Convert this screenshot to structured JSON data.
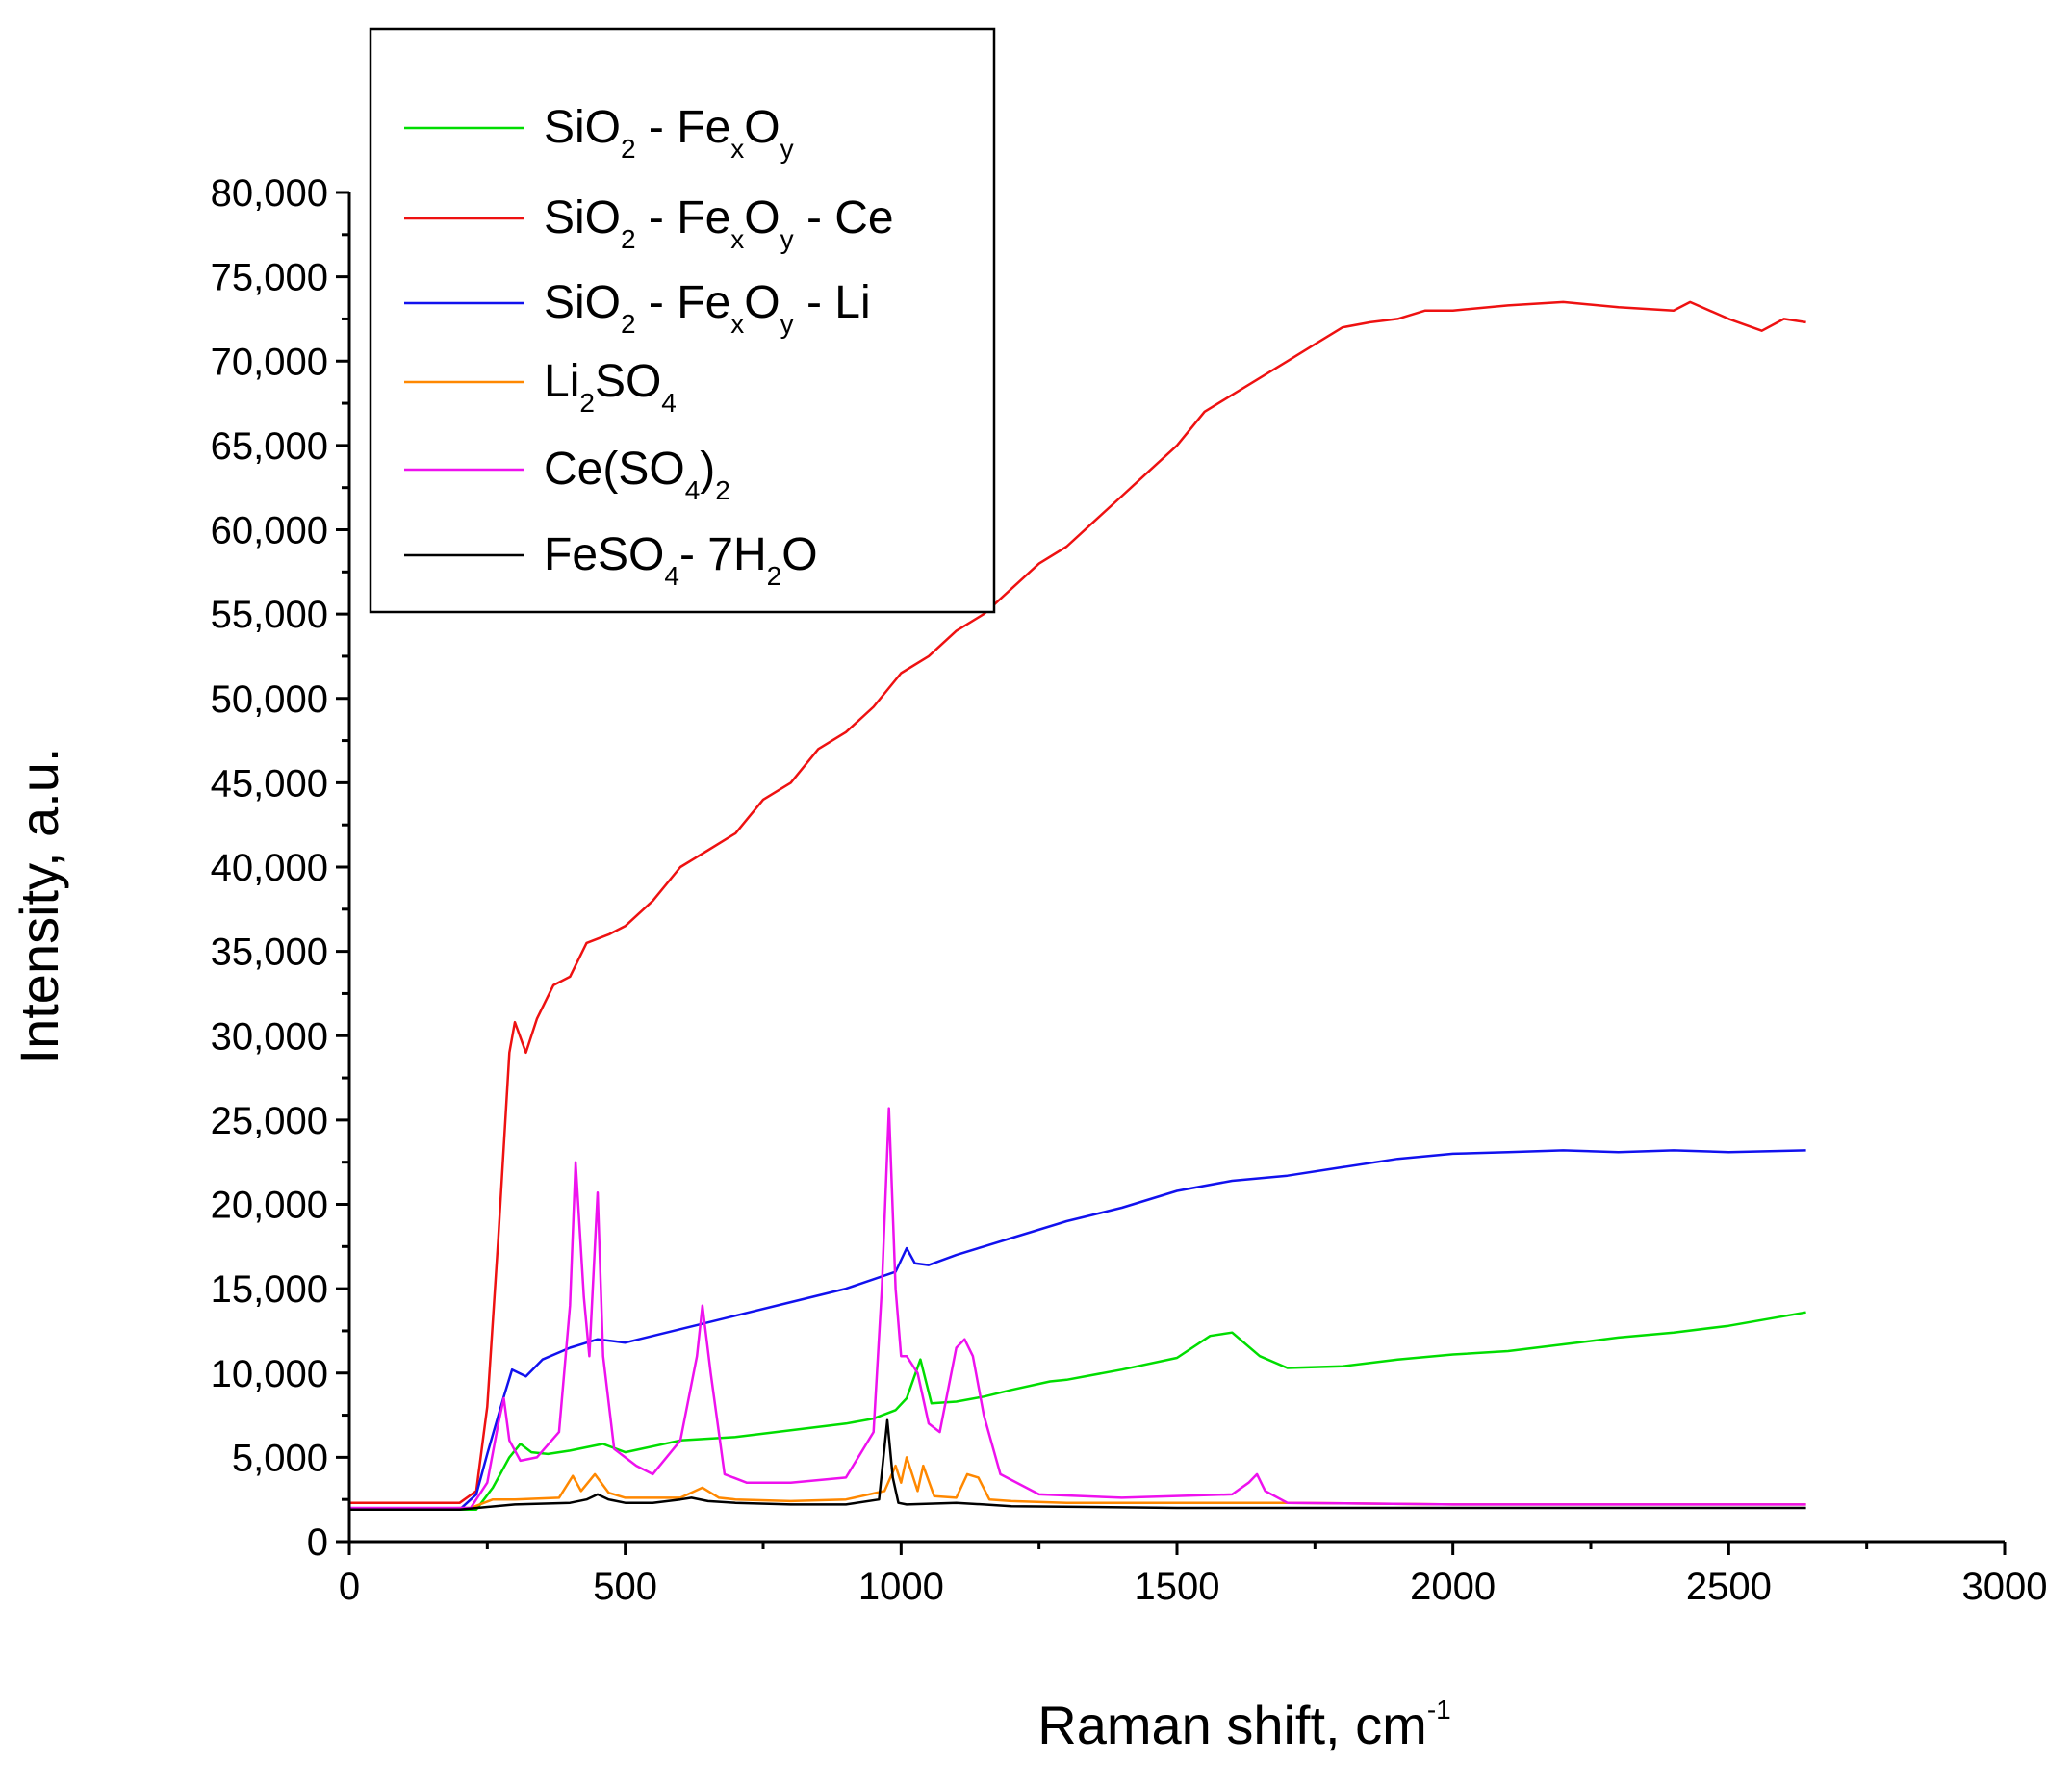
{
  "chart_data": {
    "type": "line",
    "title": "",
    "xlabel": "Raman shift, cm",
    "xlabel_sup": "-1",
    "ylabel": "Intensity, a.u.",
    "xlim": [
      0,
      3000
    ],
    "ylim": [
      0,
      80000
    ],
    "xticks": [
      0,
      500,
      1000,
      1500,
      2000,
      2500,
      3000
    ],
    "xtick_labels": [
      "0",
      "500",
      "1000",
      "1500",
      "2000",
      "2500",
      "3000"
    ],
    "yticks": [
      0,
      5000,
      10000,
      15000,
      20000,
      25000,
      30000,
      35000,
      40000,
      45000,
      50000,
      55000,
      60000,
      65000,
      70000,
      75000,
      80000
    ],
    "ytick_labels": [
      "0",
      "5,000",
      "10,000",
      "15,000",
      "20,000",
      "25,000",
      "30,000",
      "35,000",
      "40,000",
      "45,000",
      "50,000",
      "55,000",
      "60,000",
      "65,000",
      "70,000",
      "75,000",
      "80,000"
    ],
    "grid": false,
    "legend_position": "top-left",
    "series": [
      {
        "legend": [
          {
            "t": "SiO"
          },
          {
            "t": "2",
            "s": "sub"
          },
          {
            "t": " - Fe"
          },
          {
            "t": "x",
            "s": "sub"
          },
          {
            "t": "O"
          },
          {
            "t": "y",
            "s": "sub"
          }
        ],
        "color": "#00dd00",
        "x": [
          0,
          230,
          260,
          290,
          310,
          330,
          360,
          400,
          460,
          500,
          600,
          700,
          800,
          900,
          950,
          990,
          1010,
          1035,
          1055,
          1100,
          1150,
          1200,
          1270,
          1300,
          1400,
          1500,
          1560,
          1600,
          1650,
          1700,
          1800,
          1900,
          2000,
          2100,
          2200,
          2300,
          2400,
          2500,
          2640
        ],
        "y": [
          1900,
          1900,
          3200,
          5000,
          5800,
          5300,
          5200,
          5400,
          5800,
          5300,
          6000,
          6200,
          6600,
          7000,
          7300,
          7800,
          8500,
          10800,
          8200,
          8300,
          8600,
          9000,
          9500,
          9600,
          10200,
          10900,
          12200,
          12400,
          11000,
          10300,
          10400,
          10800,
          11100,
          11300,
          11700,
          12100,
          12400,
          12800,
          13600
        ]
      },
      {
        "legend": [
          {
            "t": "SiO"
          },
          {
            "t": "2",
            "s": "sub"
          },
          {
            "t": " - Fe"
          },
          {
            "t": "x",
            "s": "sub"
          },
          {
            "t": "O"
          },
          {
            "t": "y",
            "s": "sub"
          },
          {
            "t": " - Ce"
          }
        ],
        "color": "#ee1111",
        "x": [
          0,
          200,
          230,
          250,
          270,
          290,
          300,
          320,
          340,
          370,
          400,
          430,
          470,
          500,
          550,
          600,
          650,
          700,
          750,
          800,
          850,
          900,
          950,
          1000,
          1050,
          1100,
          1150,
          1200,
          1250,
          1300,
          1350,
          1400,
          1450,
          1500,
          1550,
          1600,
          1650,
          1700,
          1750,
          1800,
          1850,
          1900,
          1950,
          2000,
          2100,
          2200,
          2300,
          2400,
          2430,
          2500,
          2560,
          2600,
          2640
        ],
        "y": [
          2300,
          2300,
          3000,
          8000,
          18000,
          29000,
          30800,
          29000,
          31000,
          33000,
          33500,
          35500,
          36000,
          36500,
          38000,
          40000,
          41000,
          42000,
          44000,
          45000,
          47000,
          48000,
          49500,
          51500,
          52500,
          54000,
          55000,
          56500,
          58000,
          59000,
          60500,
          62000,
          63500,
          65000,
          67000,
          68000,
          69000,
          70000,
          71000,
          72000,
          72300,
          72500,
          73000,
          73000,
          73300,
          73500,
          73200,
          73000,
          73500,
          72500,
          71800,
          72500,
          72300
        ]
      },
      {
        "legend": [
          {
            "t": "SiO"
          },
          {
            "t": "2",
            "s": "sub"
          },
          {
            "t": " - Fe"
          },
          {
            "t": "x",
            "s": "sub"
          },
          {
            "t": "O"
          },
          {
            "t": "y",
            "s": "sub"
          },
          {
            "t": " - Li"
          }
        ],
        "color": "#1111ee",
        "x": [
          0,
          200,
          230,
          250,
          280,
          295,
          320,
          350,
          400,
          450,
          500,
          600,
          700,
          800,
          900,
          990,
          1010,
          1025,
          1050,
          1100,
          1150,
          1200,
          1300,
          1400,
          1500,
          1600,
          1700,
          1800,
          1900,
          2000,
          2100,
          2200,
          2300,
          2400,
          2500,
          2640
        ],
        "y": [
          1900,
          1900,
          2800,
          5200,
          8600,
          10200,
          9800,
          10800,
          11500,
          12000,
          11800,
          12600,
          13400,
          14200,
          15000,
          16000,
          17400,
          16500,
          16400,
          17000,
          17500,
          18000,
          19000,
          19800,
          20800,
          21400,
          21700,
          22200,
          22700,
          23000,
          23100,
          23200,
          23100,
          23200,
          23100,
          23200
        ]
      },
      {
        "legend": [
          {
            "t": "Li"
          },
          {
            "t": "2",
            "s": "sub"
          },
          {
            "t": "SO"
          },
          {
            "t": "4",
            "s": "sub"
          }
        ],
        "color": "#ff8800",
        "x": [
          0,
          220,
          260,
          300,
          380,
          405,
          420,
          445,
          470,
          500,
          600,
          640,
          670,
          700,
          800,
          900,
          970,
          990,
          1000,
          1010,
          1030,
          1040,
          1060,
          1100,
          1120,
          1140,
          1160,
          1200,
          1300,
          1500,
          1700,
          2000,
          2300,
          2640
        ],
        "y": [
          1900,
          2000,
          2500,
          2500,
          2600,
          3900,
          3000,
          4000,
          2900,
          2600,
          2600,
          3200,
          2600,
          2500,
          2400,
          2500,
          3000,
          4500,
          3500,
          5000,
          3000,
          4500,
          2700,
          2600,
          4000,
          3800,
          2500,
          2400,
          2300,
          2300,
          2300,
          2200,
          2200,
          2200
        ]
      },
      {
        "legend": [
          {
            "t": "Ce(SO"
          },
          {
            "t": "4",
            "s": "sub"
          },
          {
            "t": ")"
          },
          {
            "t": "2",
            "s": "sub"
          }
        ],
        "color": "#ee11ee",
        "x": [
          0,
          220,
          250,
          270,
          280,
          290,
          310,
          340,
          380,
          400,
          410,
          425,
          435,
          450,
          460,
          480,
          520,
          550,
          600,
          630,
          640,
          655,
          680,
          720,
          800,
          900,
          950,
          965,
          978,
          990,
          1000,
          1010,
          1030,
          1050,
          1070,
          1100,
          1115,
          1130,
          1150,
          1180,
          1250,
          1400,
          1600,
          1630,
          1645,
          1660,
          1700,
          2000,
          2640
        ],
        "y": [
          2000,
          2000,
          3500,
          7000,
          8500,
          6000,
          4800,
          5000,
          6500,
          14000,
          22500,
          14500,
          11000,
          20700,
          11000,
          5500,
          4500,
          4000,
          6000,
          11000,
          14000,
          10000,
          4000,
          3500,
          3500,
          3800,
          6500,
          15000,
          25700,
          15000,
          11000,
          11000,
          10000,
          7000,
          6500,
          11500,
          12000,
          11000,
          7500,
          4000,
          2800,
          2600,
          2800,
          3500,
          4000,
          3000,
          2300,
          2200,
          2200
        ]
      },
      {
        "legend": [
          {
            "t": "FeSO"
          },
          {
            "t": "4",
            "s": "sub"
          },
          {
            "t": "- 7H"
          },
          {
            "t": "2",
            "s": "sub"
          },
          {
            "t": "O"
          }
        ],
        "color": "#000000",
        "x": [
          0,
          200,
          300,
          400,
          430,
          450,
          470,
          500,
          550,
          600,
          620,
          650,
          700,
          800,
          900,
          960,
          975,
          985,
          995,
          1010,
          1100,
          1150,
          1200,
          1500,
          2000,
          2640
        ],
        "y": [
          1900,
          1900,
          2200,
          2300,
          2500,
          2800,
          2500,
          2300,
          2300,
          2500,
          2600,
          2400,
          2300,
          2200,
          2200,
          2500,
          7200,
          3800,
          2300,
          2200,
          2300,
          2200,
          2100,
          2000,
          2000,
          2000
        ]
      }
    ]
  }
}
